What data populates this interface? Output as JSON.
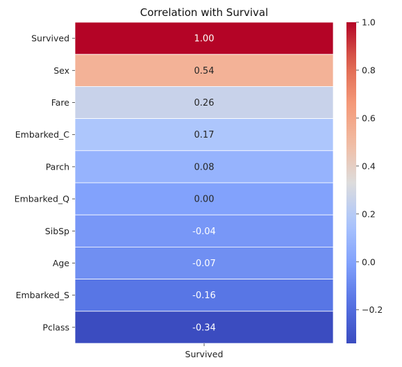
{
  "chart_data": {
    "type": "heatmap",
    "title": "Correlation with Survival",
    "columns": [
      "Survived"
    ],
    "rows": [
      "Survived",
      "Sex",
      "Fare",
      "Embarked_C",
      "Parch",
      "Embarked_Q",
      "SibSp",
      "Age",
      "Embarked_S",
      "Pclass"
    ],
    "values": [
      1.0,
      0.54,
      0.26,
      0.17,
      0.08,
      0.0,
      -0.04,
      -0.07,
      -0.16,
      -0.34
    ],
    "annotations": [
      "1.00",
      "0.54",
      "0.26",
      "0.17",
      "0.08",
      "0.00",
      "-0.04",
      "-0.07",
      "-0.16",
      "-0.34"
    ],
    "colormap": "coolwarm",
    "vmin": -0.34,
    "vmax": 1.0,
    "colorbar_ticks": [
      -0.2,
      0.0,
      0.2,
      0.4,
      0.6,
      0.8,
      1.0
    ],
    "colorbar_tick_labels": [
      "−0.2",
      "0.0",
      "0.2",
      "0.4",
      "0.6",
      "0.8",
      "1.0"
    ],
    "grid_lines": true,
    "line_color": "#ffffff"
  }
}
